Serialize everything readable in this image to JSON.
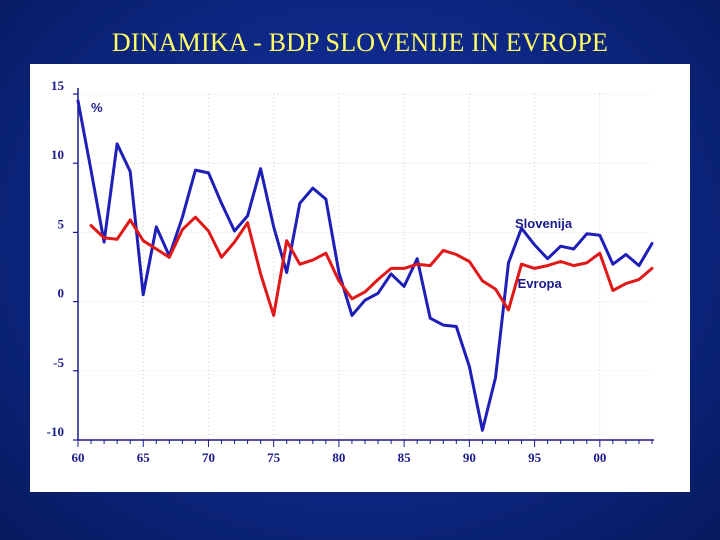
{
  "title": "DINAMIKA - BDP SLOVENIJE IN EVROPE",
  "chart_data": {
    "type": "line",
    "title": "DINAMIKA - BDP SLOVENIJE IN EVROPE",
    "ylabel": "%",
    "xlabel": "",
    "xlim": [
      1960,
      2004
    ],
    "ylim": [
      -10,
      15
    ],
    "x_ticks": [
      1960,
      1965,
      1970,
      1975,
      1980,
      1985,
      1990,
      1995,
      2000
    ],
    "x_tick_labels": [
      "60",
      "65",
      "70",
      "75",
      "80",
      "85",
      "90",
      "95",
      "00"
    ],
    "y_ticks": [
      15,
      10,
      5,
      0,
      -5,
      -10
    ],
    "y_tick_labels": [
      "15",
      "10",
      "5",
      "0",
      "-5",
      "-10"
    ],
    "grid_x": true,
    "series": [
      {
        "name": "Slovenija",
        "color": "#1f1fb8",
        "x": [
          1960,
          1961,
          1962,
          1963,
          1964,
          1965,
          1966,
          1967,
          1968,
          1969,
          1970,
          1971,
          1972,
          1973,
          1974,
          1975,
          1976,
          1977,
          1978,
          1979,
          1980,
          1981,
          1982,
          1983,
          1984,
          1985,
          1986,
          1987,
          1988,
          1989,
          1990,
          1991,
          1992,
          1993,
          1994,
          1995,
          1996,
          1997,
          1998,
          1999,
          2000,
          2001,
          2002,
          2003,
          2004
        ],
        "values": [
          14.5,
          9.5,
          4.3,
          11.4,
          9.4,
          0.5,
          5.4,
          3.3,
          6.1,
          9.5,
          9.3,
          7.1,
          5.1,
          6.2,
          9.6,
          5.4,
          2.1,
          7.1,
          8.2,
          7.4,
          2.1,
          -1.0,
          0.1,
          0.6,
          2.0,
          1.1,
          3.1,
          -1.2,
          -1.7,
          -1.8,
          -4.7,
          -9.3,
          -5.5,
          2.8,
          5.3,
          4.1,
          3.1,
          4.0,
          3.8,
          4.9,
          4.8,
          2.7,
          3.4,
          2.6,
          4.2
        ]
      },
      {
        "name": "Evropa",
        "color": "#e01818",
        "x": [
          1961,
          1962,
          1963,
          1964,
          1965,
          1966,
          1967,
          1968,
          1969,
          1970,
          1971,
          1972,
          1973,
          1974,
          1975,
          1976,
          1977,
          1978,
          1979,
          1980,
          1981,
          1982,
          1983,
          1984,
          1985,
          1986,
          1987,
          1988,
          1989,
          1990,
          1991,
          1992,
          1993,
          1994,
          1995,
          1996,
          1997,
          1998,
          1999,
          2000,
          2001,
          2002,
          2003,
          2004
        ],
        "values": [
          5.5,
          4.6,
          4.5,
          5.9,
          4.4,
          3.8,
          3.2,
          5.2,
          6.1,
          5.1,
          3.2,
          4.3,
          5.7,
          2.0,
          -1.0,
          4.4,
          2.7,
          3.0,
          3.5,
          1.5,
          0.2,
          0.7,
          1.6,
          2.4,
          2.4,
          2.7,
          2.6,
          3.7,
          3.4,
          2.9,
          1.5,
          0.9,
          -0.6,
          2.7,
          2.4,
          2.6,
          2.9,
          2.6,
          2.8,
          3.5,
          0.8,
          1.3,
          1.6,
          2.4
        ]
      }
    ],
    "annotations": [
      {
        "text": "Slovenija",
        "series": "Slovenija"
      },
      {
        "text": "Evropa",
        "series": "Evropa"
      }
    ]
  }
}
